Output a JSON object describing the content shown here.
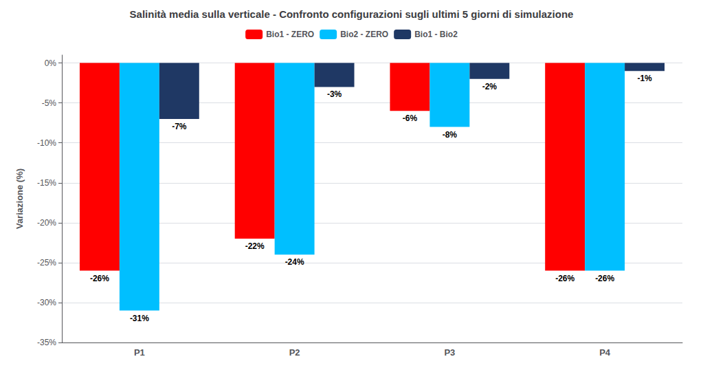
{
  "chart_data": {
    "type": "bar",
    "title": "Salinità media sulla verticale - Confronto configurazioni sugli ultimi 5 giorni di simulazione",
    "categories": [
      "P1",
      "P2",
      "P3",
      "P4"
    ],
    "series": [
      {
        "name": "Bio1 - ZERO",
        "color": "#FF0000",
        "values": [
          -26,
          -22,
          -6,
          -26
        ],
        "value_labels": [
          "-26%",
          "-22%",
          "-6%",
          "-26%"
        ]
      },
      {
        "name": "Bio2 - ZERO",
        "color": "#00BFFF",
        "values": [
          -31,
          -24,
          -8,
          -26
        ],
        "value_labels": [
          "-31%",
          "-24%",
          "-8%",
          "-26%"
        ]
      },
      {
        "name": "Bio1 - Bio2",
        "color": "#1F3864",
        "values": [
          -7,
          -3,
          -2,
          -1
        ],
        "value_labels": [
          "-7%",
          "-3%",
          "-2%",
          "-1%"
        ]
      }
    ],
    "ylabel": "Variazione (%)",
    "ylim": [
      -35,
      1
    ],
    "yticks": [
      {
        "value": 0,
        "label": "0%"
      },
      {
        "value": -5,
        "label": "-5%"
      },
      {
        "value": -10,
        "label": "-10%"
      },
      {
        "value": -15,
        "label": "-15%"
      },
      {
        "value": -20,
        "label": "-20%"
      },
      {
        "value": -25,
        "label": "-25%"
      },
      {
        "value": -30,
        "label": "-30%"
      },
      {
        "value": -35,
        "label": "-35%"
      }
    ],
    "grid": true,
    "legend": "top",
    "data_labels": true
  }
}
